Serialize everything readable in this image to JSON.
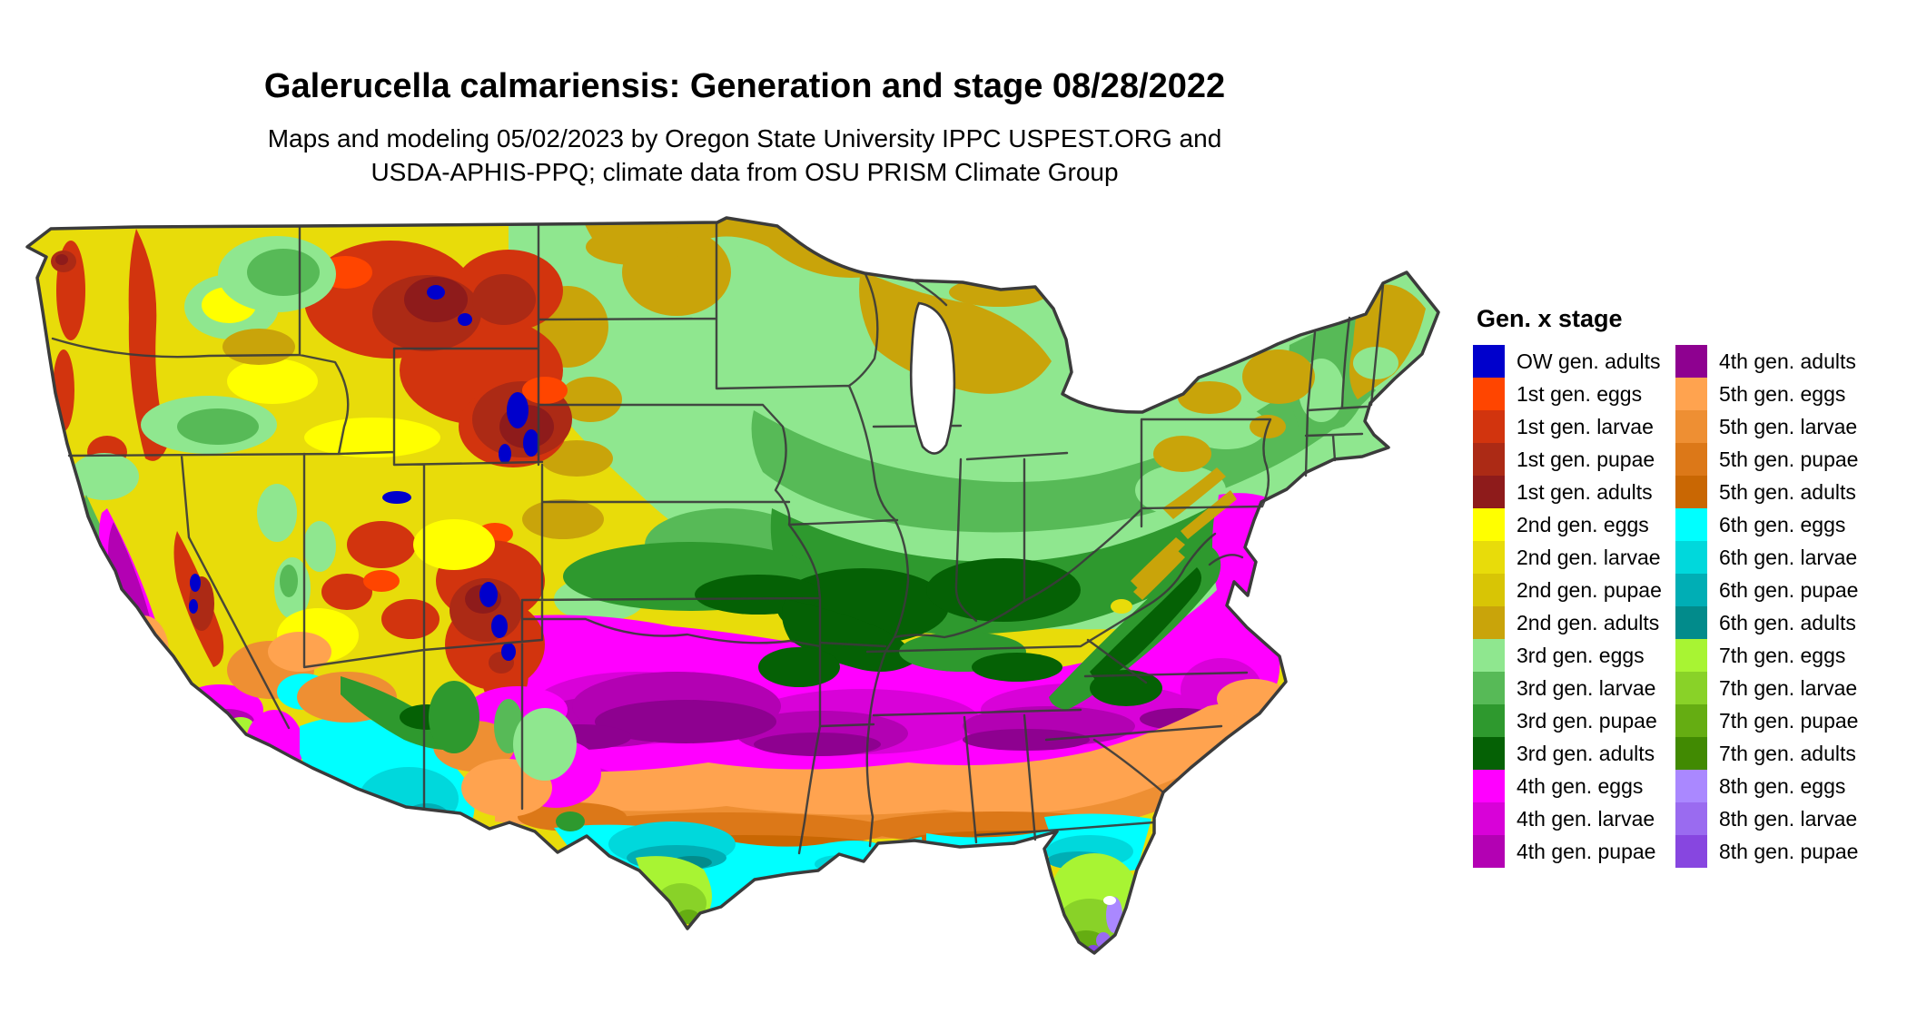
{
  "header": {
    "title": "Galerucella calmariensis: Generation and stage 08/28/2022",
    "subtitle_line1": "Maps and modeling 05/02/2023 by Oregon State University IPPC USPEST.ORG and",
    "subtitle_line2": "USDA-APHIS-PPQ; climate data from OSU PRISM Climate Group"
  },
  "legend": {
    "title": "Gen. x stage",
    "columns": [
      [
        {
          "label": "OW gen. adults",
          "color": "#0000CC"
        },
        {
          "label": "1st gen. eggs",
          "color": "#FF4500"
        },
        {
          "label": "1st gen. larvae",
          "color": "#D2340E"
        },
        {
          "label": "1st gen. pupae",
          "color": "#AC2A15"
        },
        {
          "label": "1st gen. adults",
          "color": "#8E1B1B"
        },
        {
          "label": "2nd gen. eggs",
          "color": "#FFFF00"
        },
        {
          "label": "2nd gen. larvae",
          "color": "#E8DC0A"
        },
        {
          "label": "2nd gen. pupae",
          "color": "#D8C505"
        },
        {
          "label": "2nd gen. adults",
          "color": "#C9A40A"
        },
        {
          "label": "3rd gen. eggs",
          "color": "#8FE78F"
        },
        {
          "label": "3rd gen. larvae",
          "color": "#57BA57"
        },
        {
          "label": "3rd gen. pupae",
          "color": "#2E992E"
        },
        {
          "label": "3rd gen. adults",
          "color": "#056105"
        },
        {
          "label": "4th gen. eggs",
          "color": "#FF00FF"
        },
        {
          "label": "4th gen. larvae",
          "color": "#D802D8"
        },
        {
          "label": "4th gen. pupae",
          "color": "#B301B3"
        }
      ],
      [
        {
          "label": "4th gen. adults",
          "color": "#8E0190"
        },
        {
          "label": "5th gen. eggs",
          "color": "#FFA34F"
        },
        {
          "label": "5th gen. larvae",
          "color": "#EE8F33"
        },
        {
          "label": "5th gen. pupae",
          "color": "#DC7818"
        },
        {
          "label": "5th gen. adults",
          "color": "#C96703"
        },
        {
          "label": "6th gen. eggs",
          "color": "#00FFFF"
        },
        {
          "label": "6th gen. larvae",
          "color": "#00D8DC"
        },
        {
          "label": "6th gen. pupae",
          "color": "#00AEB5"
        },
        {
          "label": "6th gen. adults",
          "color": "#028B8B"
        },
        {
          "label": "7th gen. eggs",
          "color": "#A8F433"
        },
        {
          "label": "7th gen. larvae",
          "color": "#89D228"
        },
        {
          "label": "7th gen. pupae",
          "color": "#65AD12"
        },
        {
          "label": "7th gen. adults",
          "color": "#418A02"
        },
        {
          "label": "8th gen. eggs",
          "color": "#AA88FF"
        },
        {
          "label": "8th gen. larvae",
          "color": "#9A6BF0"
        },
        {
          "label": "8th gen. pupae",
          "color": "#8746E0"
        }
      ]
    ]
  },
  "map": {
    "palette": {
      "ow_adults": "#0000CC",
      "g1_eggs": "#FF4500",
      "g1_larvae": "#D2340E",
      "g1_pupae": "#AC2A15",
      "g1_adults": "#8E1B1B",
      "g2_eggs": "#FFFF00",
      "g2_larvae": "#E8DC0A",
      "g2_pupae": "#D8C505",
      "g2_adults": "#C9A40A",
      "g3_eggs": "#8FE78F",
      "g3_larvae": "#57BA57",
      "g3_pupae": "#2E992E",
      "g3_adults": "#056105",
      "g4_eggs": "#FF00FF",
      "g4_larvae": "#D802D8",
      "g4_pupae": "#B301B3",
      "g4_adults": "#8E0190",
      "g5_eggs": "#FFA34F",
      "g5_larvae": "#EE8F33",
      "g5_pupae": "#DC7818",
      "g5_adults": "#C96703",
      "g6_eggs": "#00FFFF",
      "g6_larvae": "#00D8DC",
      "g6_pupae": "#00AEB5",
      "g6_adults": "#028B8B",
      "g7_eggs": "#A8F433",
      "g7_larvae": "#89D228",
      "g7_pupae": "#65AD12",
      "g7_adults": "#418A02",
      "g8_eggs": "#AA88FF",
      "g8_larvae": "#9A6BF0",
      "g8_pupae": "#8746E0",
      "no_data": "#FFFFFF",
      "border": "#3B3B3B"
    }
  }
}
